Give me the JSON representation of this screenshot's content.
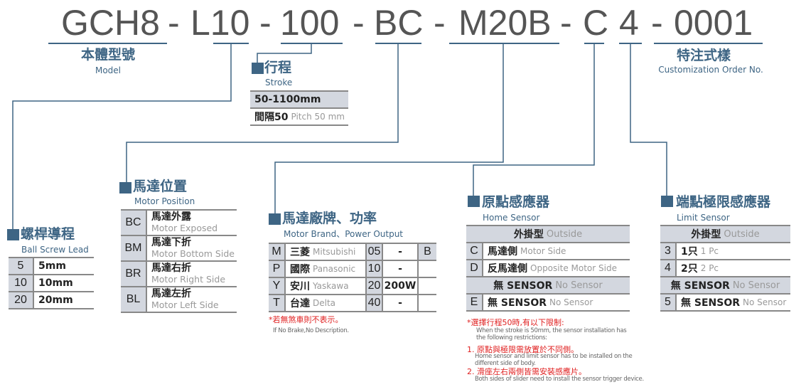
{
  "code": {
    "segments": [
      "GCH8",
      "-",
      "L10",
      "-",
      "100",
      "-",
      "BC",
      "-",
      "M20B",
      "-",
      "C",
      "4",
      "-",
      "0001"
    ]
  },
  "model": {
    "title": "本體型號",
    "subtitle": "Model"
  },
  "custom": {
    "title": "特注式樣",
    "subtitle": "Customization Order No."
  },
  "stroke": {
    "title": "行程",
    "subtitle": "Stroke",
    "rows": [
      {
        "value": "50-1100mm"
      },
      {
        "value": "間隔50",
        "en": "Pitch 50 mm"
      }
    ]
  },
  "lead": {
    "title": "螺桿導程",
    "subtitle": "Ball Screw Lead",
    "rows": [
      {
        "key": "5",
        "value": "5mm"
      },
      {
        "key": "10",
        "value": "10mm"
      },
      {
        "key": "20",
        "value": "20mm"
      }
    ]
  },
  "position": {
    "title": "馬達位置",
    "subtitle": "Motor Position",
    "rows": [
      {
        "key": "BC",
        "value": "馬達外露",
        "en": "Motor Exposed"
      },
      {
        "key": "BM",
        "value": "馬達下折",
        "en": "Motor Bottom Side"
      },
      {
        "key": "BR",
        "value": "馬達右折",
        "en": "Motor Right Side"
      },
      {
        "key": "BL",
        "value": "馬達左折",
        "en": "Motor Left Side"
      }
    ]
  },
  "brand": {
    "title": "馬達廠牌、功率",
    "subtitle": "Motor Brand、Power Output",
    "rows": [
      {
        "key": "M",
        "value": "三菱",
        "en": "Mitsubishi",
        "code": "05",
        "power": "-",
        "brake": "B"
      },
      {
        "key": "P",
        "value": "國際",
        "en": "Panasonic",
        "code": "10",
        "power": "-",
        "brake": ""
      },
      {
        "key": "Y",
        "value": "安川",
        "en": "Yaskawa",
        "code": "20",
        "power": "200W",
        "brake": ""
      },
      {
        "key": "T",
        "value": "台達",
        "en": "Delta",
        "code": "40",
        "power": "-",
        "brake": ""
      }
    ],
    "note": "*若無煞車則不表示。",
    "note_en": "If No Brake,No Description."
  },
  "home": {
    "title": "原點感應器",
    "subtitle": "Home Sensor",
    "rows": [
      {
        "header": "外掛型",
        "en": "Outside"
      },
      {
        "key": "C",
        "value": "馬達側",
        "en": "Motor Side"
      },
      {
        "key": "D",
        "value": "反馬達側",
        "en": "Opposite Motor Side"
      },
      {
        "header": "無 SENSOR",
        "en": "No Sensor"
      },
      {
        "key": "E",
        "value": "無 SENSOR",
        "en": "No Sensor"
      }
    ]
  },
  "limit": {
    "title": "端點極限感應器",
    "subtitle": "Limit Sensor",
    "rows": [
      {
        "header": "外掛型",
        "en": "Outside"
      },
      {
        "key": "3",
        "value": "1只",
        "en": "1 Pc"
      },
      {
        "key": "4",
        "value": "2只",
        "en": "2 Pc"
      },
      {
        "header": "無 SENSOR",
        "en": "No Sensor"
      },
      {
        "key": "5",
        "value": "無 SENSOR",
        "en": "No Sensor"
      }
    ]
  },
  "notes": {
    "intro": "*選擇行程50時,有以下限制:",
    "intro_en": "When the stroke is 50mm, the sensor installation has the following restrictions:",
    "items": [
      {
        "text": "1. 原點與極限需放置於不同側。",
        "en": "Home sensor and limit sensor has to be installed on the different side of body."
      },
      {
        "text": "2. 滑座左右兩側皆需安裝感應片。",
        "en": "Both sides of slider need to install the sensor trigger device."
      }
    ]
  },
  "colors": {
    "accent": "#3e6584",
    "table_fill": "#d3d7df",
    "rule": "#888888",
    "note": "#e02020"
  }
}
